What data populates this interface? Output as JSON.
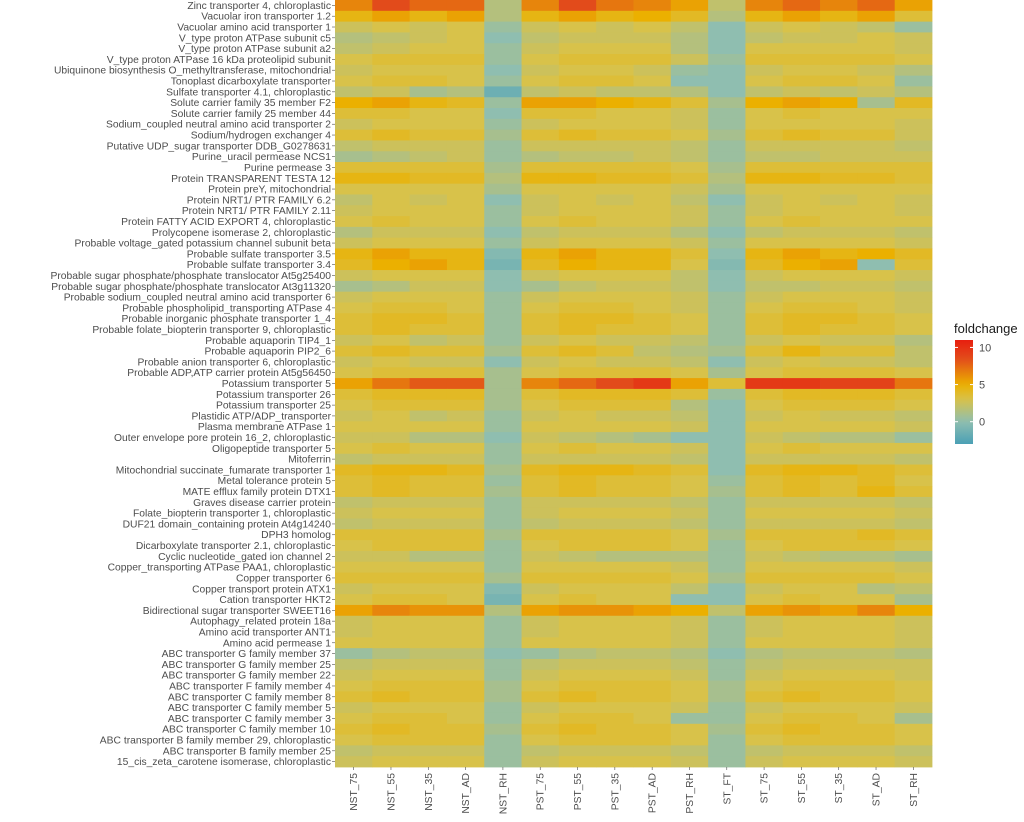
{
  "chart_data": {
    "type": "heatmap",
    "title": "",
    "xlabel": "",
    "ylabel": "",
    "columns": [
      "NST_75",
      "NST_55",
      "NST_35",
      "NST_AD",
      "NST_RH",
      "PST_75",
      "PST_55",
      "PST_35",
      "PST_AD",
      "PST_RH",
      "ST_FT",
      "ST_75",
      "ST_55",
      "ST_35",
      "ST_AD",
      "ST_RH"
    ],
    "rows": [
      "Zinc transporter 4, chloroplastic",
      "Vacuolar iron transporter 1.2",
      "Vacuolar amino acid transporter 1",
      "V_type proton ATPase subunit c5",
      "V_type proton ATPase subunit a2",
      "V_type proton ATPase 16 kDa proteolipid subunit",
      "Ubiquinone biosynthesis O_methyltransferase, mitochondrial",
      "Tonoplast dicarboxylate transporter",
      "Sulfate transporter 4.1, chloroplastic",
      "Solute carrier family 35 member F2",
      "Solute carrier family 25 member 44",
      "Sodium_coupled neutral amino acid transporter 2",
      "Sodium/hydrogen exchanger 4",
      "Putative UDP_sugar transporter DDB_G0278631",
      "Purine_uracil permease NCS1",
      "Purine permease 3",
      "Protein TRANSPARENT TESTA 12",
      "Protein preY, mitochondrial",
      "Protein NRT1/ PTR FAMILY 6.2",
      "Protein NRT1/ PTR FAMILY 2.11",
      "Protein FATTY ACID EXPORT 4, chloroplastic",
      "Prolycopene isomerase 2, chloroplastic",
      "Probable voltage_gated potassium channel subunit beta",
      "Probable sulfate transporter 3.5",
      "Probable sulfate transporter 3.4",
      "Probable sugar phosphate/phosphate translocator At5g25400",
      "Probable sugar phosphate/phosphate translocator At3g11320",
      "Probable sodium_coupled neutral amino acid transporter 6",
      "Probable phospholipid_transporting ATPase 4",
      "Probable inorganic phosphate transporter 1_4",
      "Probable folate_biopterin transporter 9, chloroplastic",
      "Probable aquaporin TIP4_1",
      "Probable aquaporin PIP2_6",
      "Probable anion transporter 6, chloroplastic",
      "Probable ADP,ATP carrier protein At5g56450",
      "Potassium transporter 5",
      "Potassium transporter 26",
      "Potassium transporter 25",
      "Plastidic ATP/ADP_transporter",
      "Plasma membrane ATPase 1",
      "Outer envelope pore protein 16_2, chloroplastic",
      "Oligopeptide transporter 5",
      "Mitoferrin",
      "Mitochondrial succinate_fumarate transporter 1",
      "Metal tolerance protein 5",
      "MATE efflux family protein DTX1",
      "Graves disease carrier protein",
      "Folate_biopterin transporter 1, chloroplastic",
      "DUF21 domain_containing protein At4g14240",
      "DPH3 homolog",
      "Dicarboxylate transporter 2.1, chloroplastic",
      "Cyclic nucleotide_gated ion channel 2",
      "Copper_transporting ATPase PAA1, chloroplastic",
      "Copper transporter 6",
      "Copper transport protein ATX1",
      "Cation transporter HKT2",
      "Bidirectional sugar transporter SWEET16",
      "Autophagy_related protein 18a",
      "Amino acid transporter ANT1",
      "Amino acid permease 1",
      "ABC transporter G family member 37",
      "ABC transporter G family member 25",
      "ABC transporter G family member 22",
      "ABC transporter F family member 4",
      "ABC transporter C family member 8",
      "ABC transporter C family member 5",
      "ABC transporter C family member 3",
      "ABC transporter C family member 10",
      "ABC transporter B family member 29, chloroplastic",
      "ABC transporter B family member 25",
      "15_cis_zeta_carotene isomerase, chloroplastic"
    ],
    "values": [
      [
        6.5,
        8.5,
        7.5,
        7.5,
        1.5,
        6.5,
        8.5,
        7.0,
        6.5,
        5.5,
        2.0,
        6.5,
        7.5,
        6.5,
        7.5,
        5.5
      ],
      [
        4.5,
        5.5,
        4.5,
        5.5,
        1.5,
        4.5,
        5.5,
        4.5,
        5.0,
        4.0,
        1.5,
        4.5,
        5.5,
        4.5,
        5.5,
        3.5
      ],
      [
        2.5,
        3.0,
        2.5,
        3.0,
        0.5,
        2.5,
        3.0,
        2.5,
        3.0,
        2.0,
        0.0,
        2.5,
        3.0,
        2.5,
        2.0,
        0.5
      ],
      [
        1.5,
        2.0,
        2.5,
        3.0,
        0.0,
        2.0,
        2.5,
        2.5,
        2.5,
        1.5,
        0.0,
        2.0,
        2.5,
        2.5,
        3.0,
        2.5
      ],
      [
        2.0,
        2.5,
        3.0,
        3.0,
        0.5,
        2.5,
        3.0,
        3.0,
        3.0,
        1.5,
        0.0,
        3.0,
        3.0,
        3.0,
        3.0,
        2.5
      ],
      [
        3.0,
        3.5,
        3.5,
        3.5,
        0.5,
        3.0,
        3.5,
        3.5,
        3.5,
        2.5,
        0.5,
        3.5,
        3.5,
        3.5,
        3.5,
        3.0
      ],
      [
        2.5,
        3.0,
        3.0,
        3.0,
        0.0,
        2.5,
        3.0,
        3.0,
        2.5,
        0.5,
        0.0,
        2.5,
        3.0,
        3.0,
        2.5,
        1.5
      ],
      [
        3.0,
        3.5,
        3.5,
        3.0,
        0.5,
        3.0,
        3.5,
        3.5,
        3.0,
        0.0,
        0.0,
        3.0,
        3.5,
        3.5,
        3.0,
        0.5
      ],
      [
        2.0,
        2.5,
        1.0,
        1.5,
        -1.5,
        2.0,
        2.5,
        2.0,
        2.0,
        1.5,
        0.0,
        2.0,
        2.5,
        2.0,
        2.5,
        1.5
      ],
      [
        5.0,
        5.5,
        4.5,
        4.0,
        0.5,
        5.5,
        5.5,
        5.0,
        4.5,
        3.5,
        1.0,
        5.0,
        5.5,
        5.0,
        1.0,
        4.0
      ],
      [
        3.5,
        3.5,
        3.0,
        3.0,
        0.0,
        3.5,
        3.5,
        3.0,
        3.0,
        2.5,
        0.5,
        3.0,
        3.5,
        3.0,
        3.0,
        3.0
      ],
      [
        2.5,
        3.0,
        3.0,
        3.0,
        0.5,
        2.5,
        3.0,
        3.0,
        3.0,
        2.5,
        0.5,
        3.0,
        3.0,
        3.0,
        3.0,
        2.5
      ],
      [
        3.5,
        4.0,
        3.5,
        3.5,
        1.0,
        3.5,
        4.0,
        3.5,
        3.5,
        3.0,
        1.0,
        3.5,
        4.0,
        3.5,
        3.5,
        2.5
      ],
      [
        2.0,
        2.5,
        2.5,
        2.5,
        0.5,
        2.5,
        2.5,
        2.5,
        2.5,
        2.0,
        0.5,
        2.5,
        2.5,
        2.5,
        2.5,
        2.0
      ],
      [
        1.0,
        1.5,
        2.0,
        2.5,
        0.5,
        1.5,
        2.0,
        2.0,
        2.5,
        2.0,
        0.5,
        2.0,
        2.0,
        2.5,
        2.5,
        2.5
      ],
      [
        3.5,
        3.5,
        3.5,
        3.5,
        1.0,
        3.5,
        3.5,
        3.5,
        3.5,
        3.0,
        1.0,
        3.5,
        3.5,
        3.5,
        3.5,
        3.5
      ],
      [
        4.5,
        4.5,
        4.0,
        4.0,
        1.5,
        4.5,
        4.5,
        4.0,
        4.0,
        3.5,
        1.5,
        4.5,
        4.5,
        4.0,
        4.0,
        3.5
      ],
      [
        3.0,
        3.0,
        3.0,
        3.0,
        1.0,
        3.0,
        3.0,
        3.0,
        3.0,
        2.5,
        1.0,
        3.0,
        3.0,
        3.0,
        3.0,
        3.0
      ],
      [
        2.0,
        3.0,
        2.5,
        3.0,
        0.0,
        2.5,
        3.0,
        2.5,
        3.0,
        2.0,
        0.0,
        2.5,
        3.0,
        2.5,
        3.0,
        2.5
      ],
      [
        2.5,
        3.0,
        3.0,
        3.0,
        0.5,
        2.5,
        3.0,
        3.0,
        3.0,
        2.5,
        0.5,
        2.5,
        3.0,
        3.0,
        3.0,
        2.5
      ],
      [
        3.0,
        3.5,
        3.0,
        3.0,
        0.5,
        3.0,
        3.5,
        3.0,
        3.0,
        2.5,
        0.5,
        3.0,
        3.5,
        3.0,
        3.0,
        3.0
      ],
      [
        1.5,
        2.5,
        2.5,
        2.5,
        0.0,
        2.0,
        2.5,
        2.5,
        2.5,
        1.5,
        0.0,
        2.0,
        2.5,
        2.5,
        2.5,
        2.0
      ],
      [
        2.5,
        3.0,
        3.0,
        3.0,
        0.5,
        2.5,
        3.0,
        3.0,
        3.0,
        2.5,
        0.5,
        3.0,
        3.0,
        3.0,
        3.0,
        2.5
      ],
      [
        4.5,
        5.5,
        4.5,
        4.5,
        -0.5,
        4.5,
        5.5,
        4.5,
        4.5,
        3.5,
        0.0,
        4.5,
        5.5,
        4.5,
        5.0,
        4.0
      ],
      [
        4.0,
        5.0,
        5.5,
        4.5,
        -1.0,
        4.0,
        5.0,
        4.5,
        4.5,
        3.0,
        -0.5,
        4.0,
        5.0,
        5.5,
        0.0,
        3.5
      ],
      [
        2.5,
        3.0,
        3.0,
        3.0,
        0.0,
        2.5,
        3.0,
        3.0,
        3.0,
        2.0,
        0.0,
        2.5,
        3.0,
        3.0,
        3.0,
        2.5
      ],
      [
        1.0,
        1.5,
        2.5,
        2.5,
        0.0,
        1.0,
        2.0,
        2.5,
        2.5,
        2.0,
        0.0,
        2.0,
        2.0,
        2.5,
        2.5,
        2.0
      ],
      [
        2.5,
        3.0,
        3.0,
        3.0,
        0.5,
        2.5,
        3.0,
        3.0,
        3.0,
        2.5,
        0.5,
        2.5,
        3.0,
        3.0,
        3.0,
        2.5
      ],
      [
        3.0,
        3.5,
        3.5,
        3.0,
        0.5,
        3.0,
        3.5,
        3.5,
        3.0,
        2.5,
        0.5,
        3.0,
        3.5,
        3.5,
        3.0,
        2.5
      ],
      [
        3.5,
        4.0,
        4.0,
        3.5,
        0.5,
        3.5,
        4.0,
        4.0,
        3.5,
        3.0,
        0.5,
        3.5,
        4.0,
        4.0,
        3.5,
        3.0
      ],
      [
        3.5,
        4.0,
        3.5,
        3.5,
        0.5,
        3.5,
        4.0,
        3.5,
        3.5,
        3.0,
        0.5,
        3.5,
        4.0,
        3.5,
        3.5,
        3.0
      ],
      [
        2.5,
        3.0,
        2.0,
        2.5,
        0.5,
        2.5,
        3.0,
        2.5,
        2.5,
        2.0,
        0.5,
        2.5,
        3.0,
        2.5,
        2.5,
        1.5
      ],
      [
        3.5,
        4.0,
        3.5,
        3.5,
        1.0,
        3.5,
        4.0,
        3.5,
        2.0,
        1.5,
        1.0,
        3.5,
        4.5,
        3.5,
        3.5,
        2.0
      ],
      [
        2.5,
        3.0,
        2.5,
        2.5,
        0.0,
        2.5,
        3.0,
        2.5,
        2.5,
        2.0,
        0.0,
        2.5,
        3.0,
        2.5,
        2.5,
        2.0
      ],
      [
        3.0,
        3.5,
        3.5,
        3.5,
        1.0,
        3.0,
        3.5,
        3.5,
        3.5,
        3.0,
        1.0,
        3.0,
        3.5,
        3.5,
        3.5,
        3.0
      ],
      [
        5.5,
        7.0,
        8.0,
        8.0,
        1.0,
        6.5,
        7.5,
        8.5,
        9.5,
        5.5,
        3.5,
        9.5,
        9.5,
        9.0,
        9.0,
        7.0
      ],
      [
        3.5,
        4.0,
        4.0,
        4.0,
        1.0,
        3.5,
        4.0,
        4.0,
        4.0,
        3.5,
        0.5,
        3.5,
        4.0,
        4.0,
        4.0,
        3.5
      ],
      [
        3.0,
        3.5,
        3.5,
        3.5,
        1.0,
        3.0,
        3.5,
        3.5,
        3.5,
        1.5,
        0.0,
        3.0,
        3.5,
        3.5,
        3.5,
        3.0
      ],
      [
        2.5,
        3.0,
        2.0,
        2.5,
        0.5,
        2.5,
        3.0,
        2.5,
        2.5,
        2.0,
        0.0,
        2.5,
        3.0,
        2.5,
        2.5,
        2.0
      ],
      [
        3.0,
        3.0,
        3.0,
        3.0,
        0.5,
        3.0,
        3.0,
        3.0,
        3.0,
        2.5,
        0.0,
        3.0,
        3.0,
        3.0,
        3.0,
        2.5
      ],
      [
        2.5,
        2.5,
        1.5,
        1.5,
        0.0,
        2.5,
        2.0,
        1.5,
        1.0,
        0.0,
        0.0,
        2.5,
        2.0,
        1.5,
        1.5,
        0.5
      ],
      [
        3.0,
        3.5,
        3.0,
        3.0,
        0.5,
        3.0,
        3.5,
        3.0,
        3.0,
        2.5,
        0.0,
        3.0,
        3.5,
        3.0,
        3.0,
        3.0
      ],
      [
        2.0,
        2.5,
        2.5,
        2.5,
        0.5,
        2.5,
        2.5,
        2.5,
        2.5,
        2.0,
        0.0,
        2.5,
        2.5,
        2.5,
        2.5,
        2.0
      ],
      [
        4.0,
        4.5,
        4.5,
        4.0,
        1.0,
        4.0,
        4.5,
        4.5,
        4.0,
        3.5,
        0.0,
        4.0,
        4.5,
        4.5,
        4.0,
        3.5
      ],
      [
        3.5,
        4.0,
        3.5,
        3.5,
        0.5,
        3.5,
        4.0,
        3.5,
        3.5,
        3.0,
        0.5,
        3.5,
        4.0,
        3.5,
        4.0,
        3.0
      ],
      [
        3.5,
        4.0,
        3.5,
        3.5,
        1.0,
        3.5,
        4.0,
        3.5,
        3.5,
        3.0,
        1.0,
        3.5,
        4.0,
        3.5,
        4.5,
        3.5
      ],
      [
        2.0,
        2.5,
        2.5,
        2.5,
        0.5,
        2.5,
        2.5,
        2.5,
        2.5,
        2.0,
        0.5,
        2.5,
        2.5,
        2.5,
        2.5,
        2.0
      ],
      [
        2.5,
        3.0,
        3.0,
        3.0,
        0.5,
        2.5,
        3.0,
        3.0,
        3.0,
        2.5,
        0.5,
        3.0,
        3.0,
        3.0,
        3.0,
        2.5
      ],
      [
        2.0,
        2.5,
        2.5,
        2.5,
        0.5,
        2.0,
        2.5,
        2.5,
        2.5,
        2.0,
        0.5,
        2.5,
        2.5,
        2.5,
        2.5,
        2.0
      ],
      [
        3.5,
        3.5,
        3.5,
        3.5,
        1.0,
        3.5,
        3.5,
        3.5,
        3.5,
        3.0,
        1.0,
        3.5,
        3.5,
        3.5,
        4.0,
        3.5
      ],
      [
        3.0,
        3.5,
        3.5,
        3.5,
        0.5,
        3.0,
        3.5,
        3.5,
        3.5,
        3.0,
        0.5,
        3.0,
        3.5,
        3.5,
        3.5,
        3.0
      ],
      [
        2.5,
        2.5,
        1.5,
        1.5,
        0.5,
        2.5,
        2.0,
        1.5,
        1.5,
        1.5,
        0.5,
        2.5,
        2.0,
        1.5,
        1.5,
        1.0
      ],
      [
        3.0,
        3.0,
        3.0,
        3.0,
        0.5,
        3.0,
        3.0,
        3.0,
        3.0,
        2.5,
        0.5,
        3.0,
        3.0,
        3.0,
        3.0,
        2.5
      ],
      [
        3.5,
        3.5,
        3.5,
        3.5,
        1.0,
        3.5,
        3.5,
        3.5,
        3.5,
        3.0,
        1.0,
        3.5,
        3.5,
        3.5,
        3.5,
        3.0
      ],
      [
        2.5,
        3.0,
        3.0,
        3.0,
        -0.5,
        2.5,
        3.0,
        3.0,
        3.0,
        2.0,
        0.0,
        2.5,
        3.0,
        3.0,
        1.5,
        2.0
      ],
      [
        3.0,
        3.5,
        3.5,
        3.0,
        -1.0,
        3.0,
        3.5,
        3.0,
        3.0,
        0.0,
        0.0,
        3.0,
        3.5,
        3.0,
        3.0,
        1.0
      ],
      [
        5.5,
        6.5,
        6.0,
        6.0,
        1.5,
        5.5,
        6.0,
        6.0,
        5.5,
        5.0,
        2.0,
        5.5,
        6.0,
        5.5,
        6.5,
        5.0
      ],
      [
        2.5,
        3.0,
        3.0,
        3.0,
        0.5,
        2.5,
        3.0,
        3.0,
        3.0,
        2.5,
        0.5,
        2.5,
        3.0,
        3.0,
        3.0,
        2.5
      ],
      [
        2.5,
        3.0,
        3.0,
        3.0,
        0.5,
        2.5,
        3.0,
        3.0,
        3.0,
        2.5,
        0.5,
        2.5,
        3.0,
        3.0,
        3.0,
        2.5
      ],
      [
        3.0,
        3.0,
        3.0,
        3.0,
        0.5,
        3.0,
        3.0,
        3.0,
        3.0,
        2.5,
        0.5,
        3.0,
        3.0,
        3.0,
        3.0,
        2.5
      ],
      [
        0.5,
        1.5,
        2.0,
        2.0,
        0.0,
        0.5,
        1.5,
        2.0,
        2.0,
        1.5,
        0.0,
        1.5,
        2.0,
        2.0,
        2.0,
        1.5
      ],
      [
        2.0,
        2.5,
        2.5,
        2.5,
        0.5,
        2.0,
        2.5,
        2.5,
        2.5,
        2.0,
        0.5,
        2.0,
        2.5,
        2.5,
        2.5,
        2.5
      ],
      [
        2.5,
        3.0,
        3.0,
        3.0,
        0.5,
        2.5,
        3.0,
        3.0,
        3.0,
        2.5,
        0.5,
        2.5,
        3.0,
        3.0,
        3.0,
        2.5
      ],
      [
        3.0,
        3.5,
        3.5,
        3.5,
        1.0,
        3.0,
        3.5,
        3.5,
        3.5,
        3.0,
        1.0,
        3.0,
        3.5,
        3.5,
        3.5,
        3.0
      ],
      [
        3.5,
        4.0,
        3.5,
        3.5,
        1.0,
        3.5,
        4.0,
        3.5,
        3.5,
        3.0,
        1.0,
        3.5,
        4.0,
        3.5,
        3.5,
        3.0
      ],
      [
        2.5,
        3.0,
        3.0,
        3.0,
        0.5,
        2.5,
        3.0,
        3.0,
        3.0,
        2.5,
        0.5,
        2.5,
        3.0,
        3.0,
        3.0,
        2.5
      ],
      [
        3.0,
        3.5,
        3.5,
        3.0,
        0.5,
        3.0,
        3.5,
        3.5,
        3.0,
        0.5,
        0.5,
        3.0,
        3.5,
        3.5,
        3.0,
        1.0
      ],
      [
        3.5,
        4.0,
        3.5,
        3.5,
        1.0,
        3.5,
        4.0,
        3.5,
        3.5,
        3.0,
        1.0,
        3.5,
        4.0,
        3.5,
        3.5,
        3.0
      ],
      [
        3.0,
        3.5,
        3.5,
        3.5,
        0.5,
        3.0,
        3.5,
        3.5,
        3.5,
        3.0,
        0.5,
        3.0,
        3.5,
        3.5,
        3.5,
        3.0
      ],
      [
        2.0,
        2.5,
        2.5,
        2.5,
        0.5,
        2.0,
        2.5,
        2.5,
        2.5,
        2.0,
        0.5,
        2.0,
        2.5,
        2.5,
        2.5,
        2.0
      ],
      [
        2.5,
        3.0,
        3.0,
        3.0,
        0.5,
        2.5,
        3.0,
        3.0,
        3.0,
        2.5,
        0.5,
        2.5,
        3.0,
        3.0,
        3.0,
        2.5
      ]
    ],
    "legend": {
      "title": "foldchange",
      "ticks": [
        10,
        5,
        0
      ],
      "min": -3,
      "max": 11,
      "placement": "right"
    },
    "colors": {
      "low": "#4aa0b5",
      "mid_low": "#8fbeb0",
      "mid": "#d8c24a",
      "high_mid": "#ebb000",
      "high": "#e24b1b",
      "max": "#e81f0f",
      "background": "#ebebeb",
      "grid": "#ffffff"
    }
  }
}
